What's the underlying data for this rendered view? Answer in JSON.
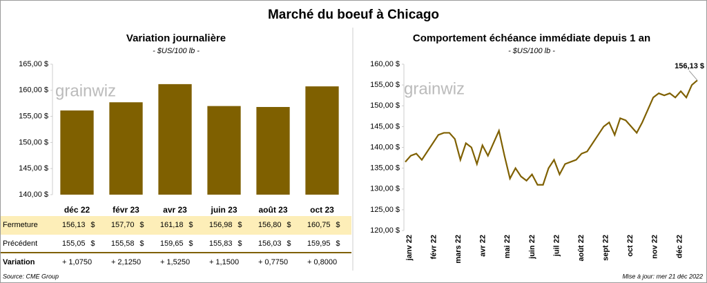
{
  "title": "Marché du boeuf à Chicago",
  "watermark": "grainwiz",
  "chart_data": [
    {
      "type": "bar",
      "title": "Variation journalière",
      "subtitle": "- $US/100 lb -",
      "categories": [
        "déc 22",
        "févr 23",
        "avr 23",
        "juin 23",
        "août 23",
        "oct 23"
      ],
      "values": [
        156.13,
        157.7,
        161.18,
        156.98,
        156.8,
        160.75
      ],
      "color": "#7f6000",
      "ylim": [
        140,
        165
      ],
      "yticks": [
        {
          "value": 140,
          "label": "140,00 $"
        },
        {
          "value": 145,
          "label": "145,00 $"
        },
        {
          "value": 150,
          "label": "150,00 $"
        },
        {
          "value": 155,
          "label": "155,00 $"
        },
        {
          "value": 160,
          "label": "160,00 $"
        },
        {
          "value": 165,
          "label": "165,00 $"
        }
      ],
      "grid": false
    },
    {
      "type": "line",
      "title": "Comportement  échéance immédiate depuis 1 an",
      "subtitle": "- $US/100 lb -",
      "xticks": [
        "janv 22",
        "févr 22",
        "mars 22",
        "avr 22",
        "mai 22",
        "juin 22",
        "juil 22",
        "août 22",
        "sept 22",
        "oct 22",
        "nov 22",
        "déc 22"
      ],
      "values": [
        136.5,
        138,
        138.5,
        137,
        139,
        141,
        143,
        143.5,
        143.5,
        142,
        137,
        141,
        140,
        136,
        140.5,
        138,
        141,
        144,
        138,
        132.5,
        135,
        133,
        132,
        133.5,
        131,
        131,
        135,
        137,
        133.5,
        136,
        136.5,
        137,
        138.5,
        139,
        141,
        143,
        145,
        146,
        143,
        147,
        146.5,
        145,
        143.5,
        146,
        149,
        152,
        153,
        152.5,
        153,
        152,
        153.5,
        152,
        155,
        156.13
      ],
      "color": "#7f6000",
      "ylim": [
        120,
        160
      ],
      "yticks": [
        {
          "value": 120,
          "label": "120,00 $"
        },
        {
          "value": 125,
          "label": "125,00 $"
        },
        {
          "value": 130,
          "label": "130,00 $"
        },
        {
          "value": 135,
          "label": "135,00 $"
        },
        {
          "value": 140,
          "label": "140,00 $"
        },
        {
          "value": 145,
          "label": "145,00 $"
        },
        {
          "value": 150,
          "label": "150,00 $"
        },
        {
          "value": 155,
          "label": "155,00 $"
        },
        {
          "value": 160,
          "label": "160,00 $"
        }
      ],
      "annotation": "156,13 $",
      "grid": false
    }
  ],
  "table": {
    "unit": "$",
    "rows": [
      {
        "label": "Fermeture",
        "cells": [
          "156,13",
          "157,70",
          "161,18",
          "156,98",
          "156,80",
          "160,75"
        ]
      },
      {
        "label": "Précédent",
        "cells": [
          "155,05",
          "155,58",
          "159,65",
          "155,83",
          "156,03",
          "159,95"
        ]
      },
      {
        "label": "Variation",
        "cells": [
          "+ 1,0750",
          "+ 2,1250",
          "+ 1,5250",
          "+ 1,1500",
          "+ 0,7750",
          "+ 0,8000"
        ]
      }
    ]
  },
  "footer": {
    "source": "Source: CME Group",
    "updated": "Mise à jour: mer 21 déc 2022"
  }
}
